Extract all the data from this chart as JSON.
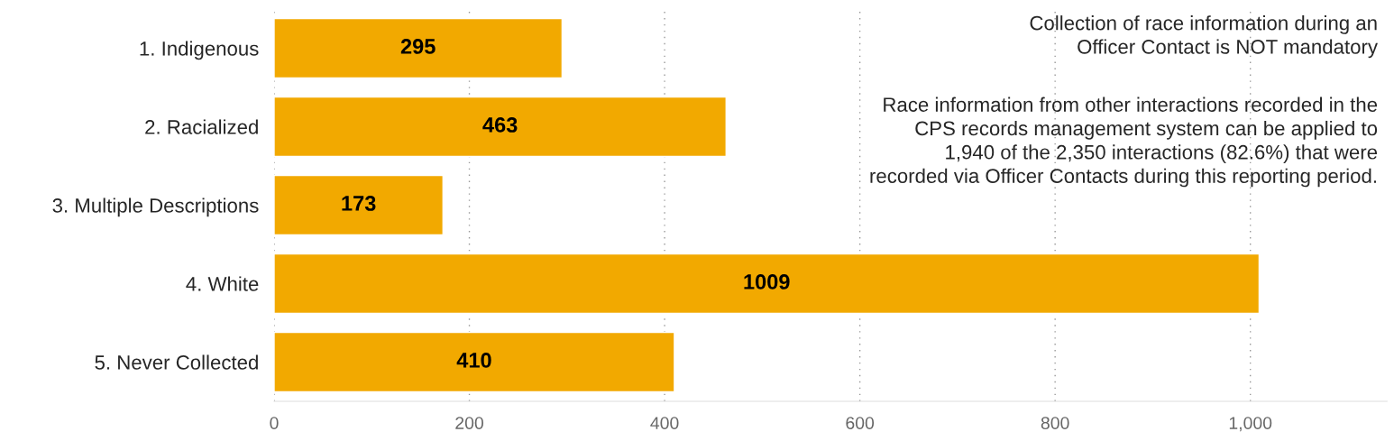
{
  "chart_data": {
    "type": "bar",
    "orientation": "horizontal",
    "categories": [
      "1. Indigenous",
      "2. Racialized",
      "3. Multiple Descriptions",
      "4. White",
      "5. Never Collected"
    ],
    "values": [
      295,
      463,
      173,
      1009,
      410
    ],
    "color": "#f2a900",
    "data_labels": true,
    "xlim": [
      0,
      1140
    ],
    "xticks": [
      0,
      200,
      400,
      600,
      800,
      {
        "value": 1000,
        "label": "1,000"
      }
    ],
    "grid": "x",
    "annotations": [
      "Collection of race information during an\nOfficer Contact is NOT mandatory",
      "Race information from other interactions recorded in the\nCPS records management system can be applied to\n1,940 of the 2,350 interactions (82.6%) that were\nrecorded via Officer Contacts during this reporting period."
    ]
  }
}
